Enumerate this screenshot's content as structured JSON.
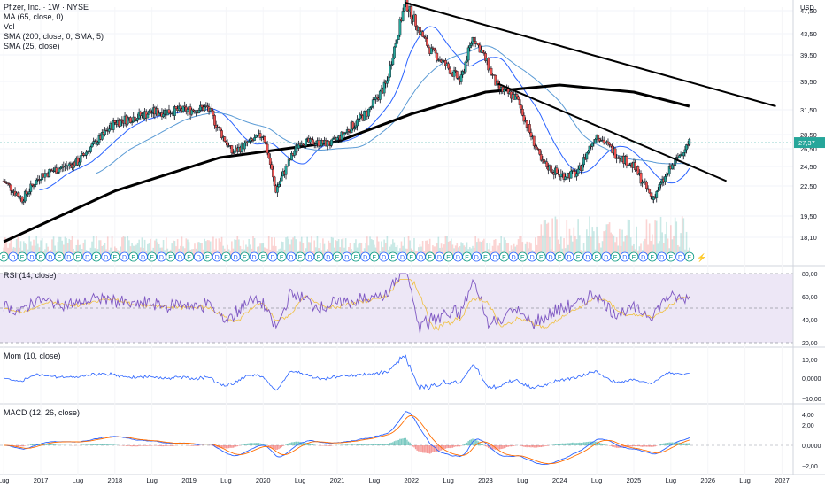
{
  "header": {
    "symbol_title": "Pfizer, Inc. · 1W · NYSE",
    "currency": "USD",
    "legend": [
      "MA (65, close, 0)",
      "Vol",
      "SMA (200, close, 0, SMA, 5)",
      "SMA (25, close)"
    ]
  },
  "colors": {
    "up": "#26a69a",
    "down": "#ef5350",
    "candle_outline": "#131722",
    "ma_fast": "#2962ff",
    "ma_slow": "#5b9bd5",
    "sma200": "#000000",
    "trendline": "#000000",
    "rsi_line": "#7e57c2",
    "rsi_ma": "#f0c040",
    "rsi_band": "#ede7f6",
    "mom_line": "#2962ff",
    "macd_line": "#2962ff",
    "signal_line": "#ff6d00",
    "price_tag": "#26a69a"
  },
  "panes": {
    "rsi": {
      "label": "RSI (14, close)",
      "ticks": [
        "80,00",
        "60,00",
        "40,00",
        "20,00"
      ]
    },
    "mom": {
      "label": "Mom (10, close)",
      "ticks": [
        "10,00",
        "0,0000",
        "−10,00"
      ]
    },
    "macd": {
      "label": "MACD (12, 26, close)",
      "ticks": [
        "4,00",
        "2,00",
        "0,0000",
        "−2,00"
      ]
    }
  },
  "x_axis_labels": [
    "Lug",
    "2017",
    "Lug",
    "2018",
    "Lug",
    "2019",
    "Lug",
    "2020",
    "Lug",
    "2021",
    "Lug",
    "2022",
    "Lug",
    "2023",
    "Lug",
    "2024",
    "Lug",
    "2025",
    "Lug",
    "2026",
    "Lug",
    "2027"
  ],
  "chart_data": {
    "type": "candlestick",
    "title": "Pfizer, Inc. · 1W · NYSE",
    "y_axis_ticks": [
      47.5,
      43.5,
      39.5,
      35.5,
      31.5,
      28.5,
      26.5,
      24.5,
      22.5,
      19.5,
      18.1
    ],
    "y_tick_labels": [
      "47,50",
      "43,50",
      "39,50",
      "35,50",
      "31,50",
      "28,50",
      "26,50",
      "24,50",
      "22,50",
      "19,50",
      "18,10"
    ],
    "last_price_label": "27,37",
    "last_price": 27.37,
    "close_series_key_points": [
      {
        "date": "2016-07",
        "close": 23.0
      },
      {
        "date": "2016-10",
        "close": 21.2
      },
      {
        "date": "2017-01",
        "close": 23.6
      },
      {
        "date": "2017-07",
        "close": 25.0
      },
      {
        "date": "2018-01",
        "close": 30.0
      },
      {
        "date": "2018-07",
        "close": 31.2
      },
      {
        "date": "2019-01",
        "close": 31.5
      },
      {
        "date": "2019-04",
        "close": 31.8
      },
      {
        "date": "2019-08",
        "close": 26.0
      },
      {
        "date": "2020-01",
        "close": 28.5
      },
      {
        "date": "2020-03",
        "close": 22.0
      },
      {
        "date": "2020-07",
        "close": 27.5
      },
      {
        "date": "2020-12",
        "close": 27.2
      },
      {
        "date": "2021-06",
        "close": 31.3
      },
      {
        "date": "2021-09",
        "close": 35.2
      },
      {
        "date": "2021-12",
        "close": 49.0
      },
      {
        "date": "2022-04",
        "close": 40.5
      },
      {
        "date": "2022-09",
        "close": 35.5
      },
      {
        "date": "2022-11",
        "close": 43.0
      },
      {
        "date": "2023-03",
        "close": 34.5
      },
      {
        "date": "2023-06",
        "close": 33.2
      },
      {
        "date": "2023-10",
        "close": 25.0
      },
      {
        "date": "2024-01",
        "close": 23.6
      },
      {
        "date": "2024-04",
        "close": 23.8
      },
      {
        "date": "2024-07",
        "close": 28.5
      },
      {
        "date": "2024-10",
        "close": 26.0
      },
      {
        "date": "2025-01",
        "close": 24.5
      },
      {
        "date": "2025-04",
        "close": 21.2
      },
      {
        "date": "2025-07",
        "close": 24.3
      },
      {
        "date": "2025-10",
        "close": 27.37
      }
    ],
    "trendlines": [
      {
        "from": {
          "date": "2021-12",
          "price": 49.0
        },
        "to": {
          "date": "2026-12",
          "price": 32.0
        }
      },
      {
        "from": {
          "date": "2023-03",
          "price": 35.2
        },
        "to": {
          "date": "2026-04",
          "price": 23.0
        }
      }
    ],
    "sma200_key_points": [
      {
        "date": "2016-07",
        "value": 17.6
      },
      {
        "date": "2018-01",
        "value": 22.0
      },
      {
        "date": "2019-06",
        "value": 25.5
      },
      {
        "date": "2021-01",
        "value": 27.5
      },
      {
        "date": "2022-01",
        "value": 31.0
      },
      {
        "date": "2023-01",
        "value": 34.0
      },
      {
        "date": "2024-01",
        "value": 35.0
      },
      {
        "date": "2025-01",
        "value": 34.0
      },
      {
        "date": "2025-10",
        "value": 32.0
      }
    ],
    "event_markers": [
      "D",
      "E",
      "⚡"
    ]
  }
}
